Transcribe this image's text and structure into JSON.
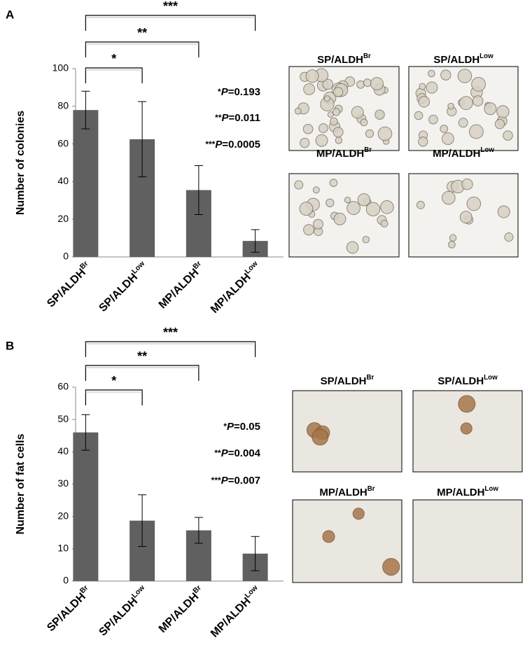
{
  "chart_data": [
    {
      "type": "bar",
      "panel": "A",
      "ylabel": "Number of colonies",
      "color": "#606060",
      "categories": [
        "SP/ALDH",
        "SP/ALDH",
        "MP/ALDH",
        "MP/ALDH"
      ],
      "category_superscripts": [
        "Br",
        "Low",
        "Br",
        "Low"
      ],
      "values": [
        78,
        62.5,
        35.5,
        8.5
      ],
      "errors": [
        10,
        20,
        13,
        6
      ],
      "ylim": [
        0,
        100
      ],
      "yticks": [
        0,
        20,
        40,
        60,
        80,
        100
      ],
      "brackets": [
        "*",
        "**",
        "***"
      ],
      "annotations": [
        {
          "stars": "*",
          "p": "P",
          "rest": "=0.193"
        },
        {
          "stars": "**",
          "p": "P",
          "rest": "=0.011"
        },
        {
          "stars": "***",
          "p": "P",
          "rest": "=0.0005"
        }
      ],
      "panel_titles": [
        {
          "text": "SP/ALDH",
          "sup": "Br"
        },
        {
          "text": "SP/ALDH",
          "sup": "Low"
        },
        {
          "text": "MP/ALDH",
          "sup": "Br"
        },
        {
          "text": "MP/ALDH",
          "sup": "Low"
        }
      ]
    },
    {
      "type": "bar",
      "panel": "B",
      "ylabel": "Number of fat cells",
      "color": "#606060",
      "categories": [
        "SP/ALDH",
        "SP/ALDH",
        "MP/ALDH",
        "MP/ALDH"
      ],
      "category_superscripts": [
        "Br",
        "Low",
        "Br",
        "Low"
      ],
      "values": [
        46,
        18.7,
        15.7,
        8.5
      ],
      "errors": [
        5.5,
        8,
        4,
        5.3
      ],
      "ylim": [
        0,
        60
      ],
      "yticks": [
        0,
        10,
        20,
        30,
        40,
        50,
        60
      ],
      "brackets": [
        "*",
        "**",
        "***"
      ],
      "annotations": [
        {
          "stars": "*",
          "p": "P",
          "rest": "=0.05"
        },
        {
          "stars": "**",
          "p": "P",
          "rest": "=0.004"
        },
        {
          "stars": "***",
          "p": "P",
          "rest": "=0.007"
        }
      ],
      "panel_titles": [
        {
          "text": "SP/ALDH",
          "sup": "Br"
        },
        {
          "text": "SP/ALDH",
          "sup": "Low"
        },
        {
          "text": "MP/ALDH",
          "sup": "Br"
        },
        {
          "text": "MP/ALDH",
          "sup": "Low"
        }
      ]
    }
  ]
}
